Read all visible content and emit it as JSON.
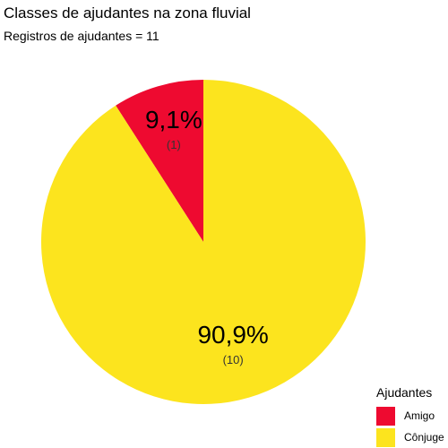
{
  "header": {
    "title": "Classes de ajudantes na zona fluvial",
    "subtitle": "Registros de ajudantes = 11"
  },
  "legend": {
    "title": "Ajudantes",
    "items": [
      {
        "label": "Amigo",
        "color": "#EE0A30"
      },
      {
        "label": "Cônjuge",
        "color": "#FCE41E"
      }
    ]
  },
  "chart_data": {
    "type": "pie",
    "title": "Classes de ajudantes na zona fluvial",
    "subtitle": "Registros de ajudantes = 11",
    "legend_title": "Ajudantes",
    "legend_position": "bottom-right",
    "slices": [
      {
        "label": "Amigo",
        "value": 1,
        "percent_label": "9,1%",
        "count_label": "(1)",
        "color": "#EE0A30"
      },
      {
        "label": "Cônjuge",
        "value": 10,
        "percent_label": "90,9%",
        "count_label": "(10)",
        "color": "#FCE41E"
      }
    ]
  }
}
